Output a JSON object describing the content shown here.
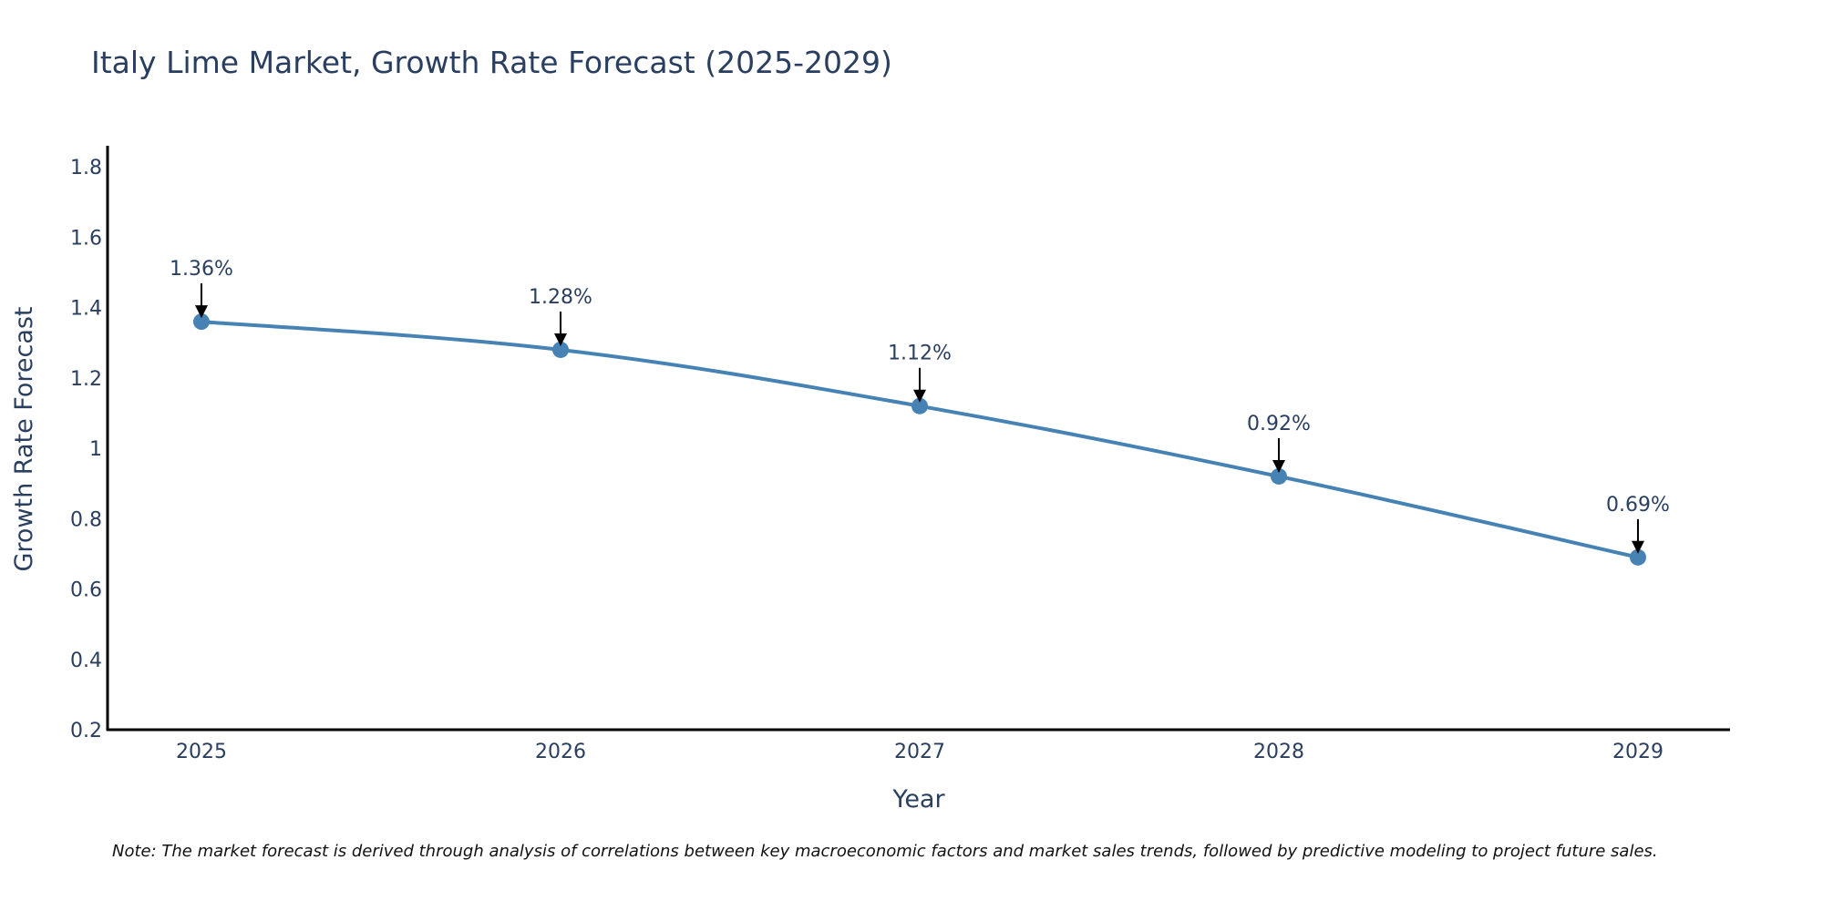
{
  "chart_data": {
    "type": "line",
    "title": "Italy Lime Market, Growth Rate Forecast (2025-2029)",
    "xlabel": "Year",
    "ylabel": "Growth Rate Forecast",
    "categories": [
      "2025",
      "2026",
      "2027",
      "2028",
      "2029"
    ],
    "series": [
      {
        "name": "Growth Rate Forecast",
        "values": [
          1.36,
          1.28,
          1.12,
          0.92,
          0.69
        ]
      }
    ],
    "data_labels": [
      "1.36%",
      "1.28%",
      "1.12%",
      "0.92%",
      "0.69%"
    ],
    "ylim": [
      0.2,
      1.86
    ],
    "yticks": [
      0.2,
      0.4,
      0.6,
      0.8,
      1,
      1.2,
      1.4,
      1.6,
      1.8
    ],
    "ytick_labels": [
      "0.2",
      "0.4",
      "0.6",
      "0.8",
      "1",
      "1.2",
      "1.4",
      "1.6",
      "1.8"
    ],
    "grid": false,
    "line_color": "#4682b4",
    "axis_color": "#000000",
    "note": "Note: The market forecast is derived through analysis of correlations between key macroeconomic factors and market sales trends, followed by predictive modeling to project future sales."
  }
}
